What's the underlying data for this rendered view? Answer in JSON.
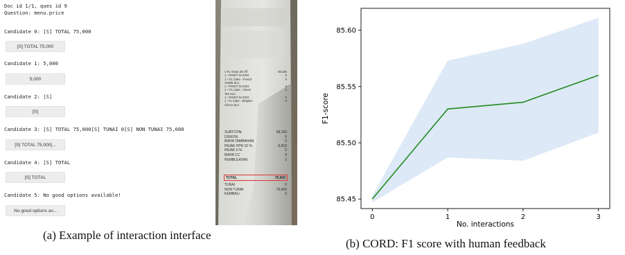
{
  "interface": {
    "doc_line": "Doc id 1/1, ques id 9",
    "question_line": "Question: menu.price",
    "candidates": [
      {
        "label": "Candidate 0: [S] TOTAL 75,000",
        "button": "[S] TOTAL 75,000"
      },
      {
        "label": "Candidate 1: 5,000",
        "button": "5,000"
      },
      {
        "label": "Candidate 2: [S]",
        "button": "[S]"
      },
      {
        "label": "Candidate 3: [S] TOTAL 75,000[S] TUNAI 0[S] NON TUNAI 75,000",
        "button": "[S] TOTAL 75,000[..."
      },
      {
        "label": "Candidate 4: [S] TOTAL",
        "button": "[S] TOTAL"
      },
      {
        "label": "Candidate 5: No good options available!",
        "button": "No good options av..."
      }
    ]
  },
  "receipt": {
    "items": [
      {
        "name": "1  FL-Xmas 30 Off",
        "price": "68,160"
      },
      {
        "name": "1   - PAKET SLICES",
        "price": "0"
      },
      {
        "name": "1   + FL Cake - French",
        "price": "0"
      },
      {
        "name": "   Vanilla SLC",
        "price": ""
      },
      {
        "name": "1   - PAKET SLICES",
        "price": "0"
      },
      {
        "name": "1   + FL Cake - Green",
        "price": "3"
      },
      {
        "name": "   Tea SLC",
        "price": ""
      },
      {
        "name": "1   - PAKET SLICES",
        "price": "0"
      },
      {
        "name": "1   - FL Cake - Belgium",
        "price": "0"
      },
      {
        "name": "   Choco SLC",
        "price": ""
      }
    ],
    "summary": [
      {
        "name": "SUBTOTAL",
        "price": "68,160"
      },
      {
        "name": "DISKON",
        "price": "0"
      },
      {
        "name": "BIAYA TAMBAHAN",
        "price": "0"
      },
      {
        "name": "PAJAK PPN 10 %",
        "price": "6,818"
      },
      {
        "name": "PAJAK 0 %",
        "price": "0"
      },
      {
        "name": "BIAYA CC",
        "price": "0"
      },
      {
        "name": "PEMBULATAN",
        "price": "2"
      }
    ],
    "total": {
      "name": "TOTAL",
      "price": "75,000"
    },
    "payment": [
      {
        "name": "TUNAI",
        "price": "0"
      },
      {
        "name": "NON TUNAI",
        "price": "75,000"
      },
      {
        "name": "KEMBALI",
        "price": "0"
      }
    ]
  },
  "captions": {
    "a": "(a) Example of interaction interface",
    "b": "(b) CORD: F1 score with human feedback"
  },
  "chart_data": {
    "type": "line",
    "x": [
      0,
      1,
      2,
      3
    ],
    "series": [
      {
        "values": [
          85.45,
          85.53,
          85.536,
          85.56
        ],
        "lower": [
          85.447,
          85.487,
          85.484,
          85.509
        ],
        "upper": [
          85.453,
          85.573,
          85.588,
          85.611
        ],
        "color": "#228b22",
        "band_color": "#dde9f6"
      }
    ],
    "xlabel": "No. interactions",
    "ylabel": "F1-score",
    "xticks": [
      "0",
      "1",
      "2",
      "3"
    ],
    "yticks": [
      "85.45",
      "85.50",
      "85.55",
      "85.60"
    ],
    "xlim": [
      -0.15,
      3.15
    ],
    "ylim": [
      85.4415,
      85.6195
    ],
    "grid": false
  }
}
